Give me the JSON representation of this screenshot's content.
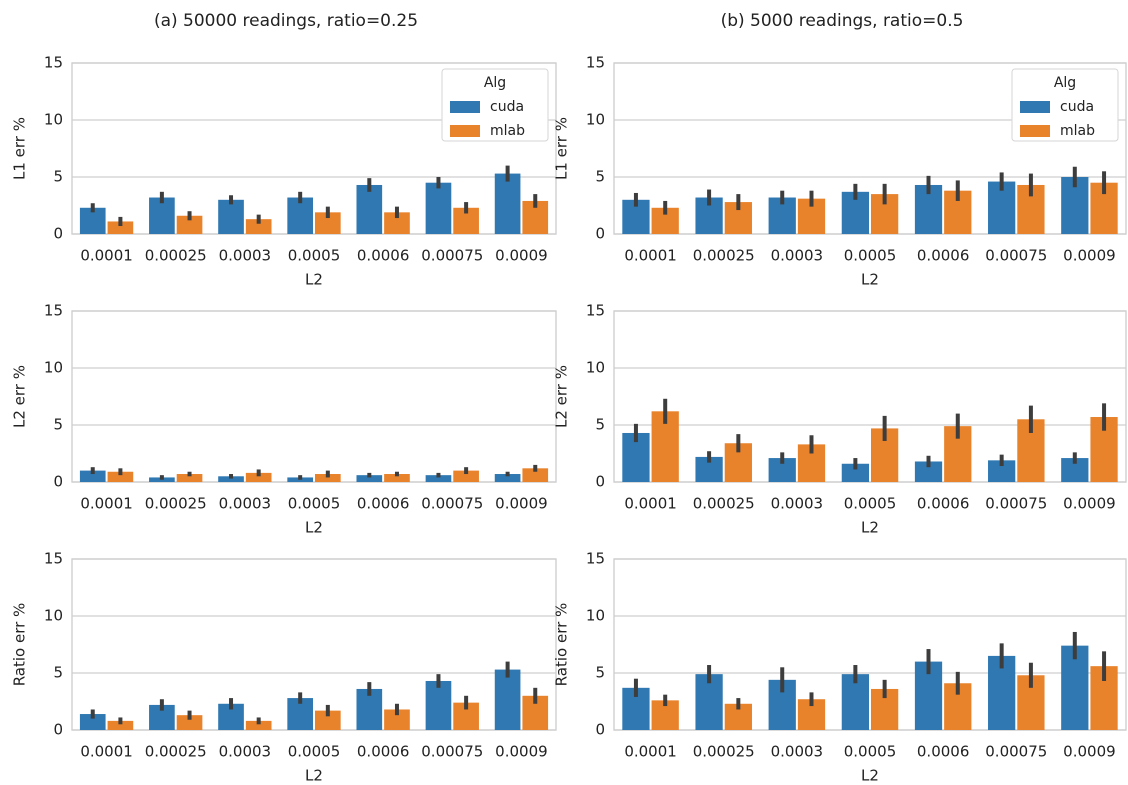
{
  "chart_data": [
    {
      "type": "bar",
      "title": "(a) 50000 readings, ratio=0.25",
      "xlabel": "L2",
      "ylabel": "L1 err %",
      "categories": [
        "0.0001",
        "0.00025",
        "0.0003",
        "0.0005",
        "0.0006",
        "0.00075",
        "0.0009"
      ],
      "series": [
        {
          "name": "cuda",
          "color": "#2f78b1",
          "values": [
            2.3,
            3.2,
            3.0,
            3.2,
            4.3,
            4.5,
            5.3
          ],
          "errors": [
            0.4,
            0.5,
            0.4,
            0.5,
            0.6,
            0.5,
            0.7
          ]
        },
        {
          "name": "mlab",
          "color": "#e8822b",
          "values": [
            1.1,
            1.6,
            1.3,
            1.9,
            1.9,
            2.3,
            2.9
          ],
          "errors": [
            0.4,
            0.4,
            0.4,
            0.5,
            0.5,
            0.5,
            0.6
          ]
        }
      ],
      "ylim": [
        0,
        15
      ],
      "yticks": [
        0,
        5,
        10,
        15
      ],
      "grid": true,
      "legend": "upper right",
      "legend_title": "Alg"
    },
    {
      "type": "bar",
      "title": "(b) 5000 readings, ratio=0.5",
      "xlabel": "L2",
      "ylabel": "L1 err %",
      "categories": [
        "0.0001",
        "0.00025",
        "0.0003",
        "0.0005",
        "0.0006",
        "0.00075",
        "0.0009"
      ],
      "series": [
        {
          "name": "cuda",
          "color": "#2f78b1",
          "values": [
            3.0,
            3.2,
            3.2,
            3.7,
            4.3,
            4.6,
            5.0
          ],
          "errors": [
            0.6,
            0.7,
            0.6,
            0.7,
            0.8,
            0.8,
            0.9
          ]
        },
        {
          "name": "mlab",
          "color": "#e8822b",
          "values": [
            2.3,
            2.8,
            3.1,
            3.5,
            3.8,
            4.3,
            4.5
          ],
          "errors": [
            0.6,
            0.7,
            0.7,
            0.9,
            0.9,
            1.0,
            1.0
          ]
        }
      ],
      "ylim": [
        0,
        15
      ],
      "yticks": [
        0,
        5,
        10,
        15
      ],
      "grid": true,
      "legend": "upper right",
      "legend_title": "Alg"
    },
    {
      "type": "bar",
      "xlabel": "L2",
      "ylabel": "L2 err %",
      "categories": [
        "0.0001",
        "0.00025",
        "0.0003",
        "0.0005",
        "0.0006",
        "0.00075",
        "0.0009"
      ],
      "series": [
        {
          "name": "cuda",
          "color": "#2f78b1",
          "values": [
            1.0,
            0.4,
            0.5,
            0.4,
            0.6,
            0.6,
            0.7
          ],
          "errors": [
            0.3,
            0.2,
            0.2,
            0.2,
            0.2,
            0.2,
            0.2
          ]
        },
        {
          "name": "mlab",
          "color": "#e8822b",
          "values": [
            0.9,
            0.7,
            0.8,
            0.7,
            0.7,
            1.0,
            1.2
          ],
          "errors": [
            0.3,
            0.2,
            0.3,
            0.3,
            0.2,
            0.3,
            0.3
          ]
        }
      ],
      "ylim": [
        0,
        15
      ],
      "yticks": [
        0,
        5,
        10,
        15
      ],
      "grid": true
    },
    {
      "type": "bar",
      "xlabel": "L2",
      "ylabel": "L2 err %",
      "categories": [
        "0.0001",
        "0.00025",
        "0.0003",
        "0.0005",
        "0.0006",
        "0.00075",
        "0.0009"
      ],
      "series": [
        {
          "name": "cuda",
          "color": "#2f78b1",
          "values": [
            4.3,
            2.2,
            2.1,
            1.6,
            1.8,
            1.9,
            2.1
          ],
          "errors": [
            0.8,
            0.5,
            0.5,
            0.5,
            0.5,
            0.5,
            0.5
          ]
        },
        {
          "name": "mlab",
          "color": "#e8822b",
          "values": [
            6.2,
            3.4,
            3.3,
            4.7,
            4.9,
            5.5,
            5.7
          ],
          "errors": [
            1.1,
            0.8,
            0.8,
            1.1,
            1.1,
            1.2,
            1.2
          ]
        }
      ],
      "ylim": [
        0,
        15
      ],
      "yticks": [
        0,
        5,
        10,
        15
      ],
      "grid": true
    },
    {
      "type": "bar",
      "xlabel": "L2",
      "ylabel": "Ratio err %",
      "categories": [
        "0.0001",
        "0.00025",
        "0.0003",
        "0.0005",
        "0.0006",
        "0.00075",
        "0.0009"
      ],
      "series": [
        {
          "name": "cuda",
          "color": "#2f78b1",
          "values": [
            1.4,
            2.2,
            2.3,
            2.8,
            3.6,
            4.3,
            5.3
          ],
          "errors": [
            0.4,
            0.5,
            0.5,
            0.5,
            0.6,
            0.6,
            0.7
          ]
        },
        {
          "name": "mlab",
          "color": "#e8822b",
          "values": [
            0.8,
            1.3,
            0.8,
            1.7,
            1.8,
            2.4,
            3.0
          ],
          "errors": [
            0.3,
            0.4,
            0.3,
            0.5,
            0.5,
            0.6,
            0.7
          ]
        }
      ],
      "ylim": [
        0,
        15
      ],
      "yticks": [
        0,
        5,
        10,
        15
      ],
      "grid": true
    },
    {
      "type": "bar",
      "xlabel": "L2",
      "ylabel": "Ratio err %",
      "categories": [
        "0.0001",
        "0.00025",
        "0.0003",
        "0.0005",
        "0.0006",
        "0.00075",
        "0.0009"
      ],
      "series": [
        {
          "name": "cuda",
          "color": "#2f78b1",
          "values": [
            3.7,
            4.9,
            4.4,
            4.9,
            6.0,
            6.5,
            7.4
          ],
          "errors": [
            0.8,
            0.8,
            1.1,
            0.8,
            1.1,
            1.1,
            1.2
          ]
        },
        {
          "name": "mlab",
          "color": "#e8822b",
          "values": [
            2.6,
            2.3,
            2.7,
            3.6,
            4.1,
            4.8,
            5.6
          ],
          "errors": [
            0.5,
            0.5,
            0.6,
            0.8,
            1.0,
            1.1,
            1.3
          ]
        }
      ],
      "ylim": [
        0,
        15
      ],
      "yticks": [
        0,
        5,
        10,
        15
      ],
      "grid": true
    }
  ]
}
